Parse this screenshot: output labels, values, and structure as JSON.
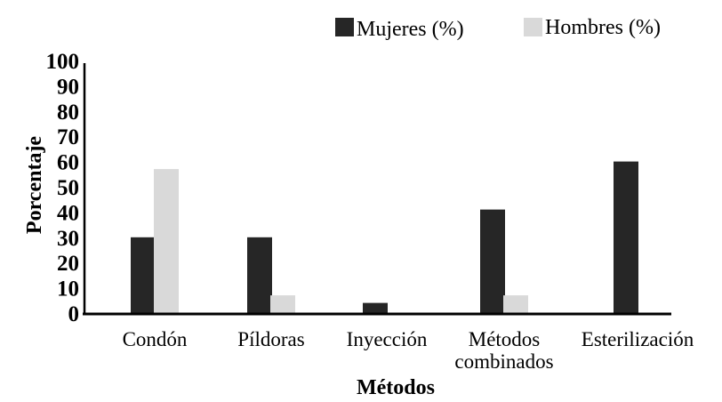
{
  "chart_data": {
    "type": "bar",
    "title": "",
    "xlabel": "Métodos",
    "ylabel": "Porcentaje",
    "ylim": [
      0,
      100
    ],
    "yticks": [
      "0",
      "10",
      "20",
      "30",
      "40",
      "50",
      "60",
      "70",
      "80",
      "90",
      "100"
    ],
    "categories": [
      [
        "Condón"
      ],
      [
        "Píldoras"
      ],
      [
        "Inyección"
      ],
      [
        "Métodos",
        "combinados"
      ],
      [
        "Esterilización"
      ]
    ],
    "series": [
      {
        "name": "Mujeres (%)",
        "color": "#262626",
        "values": [
          30,
          30,
          4,
          41,
          60
        ]
      },
      {
        "name": "Hombres (%)",
        "color": "#d9d9d9",
        "values": [
          57,
          7,
          0,
          7,
          0
        ]
      }
    ],
    "legend": "top-right",
    "grid": false
  }
}
